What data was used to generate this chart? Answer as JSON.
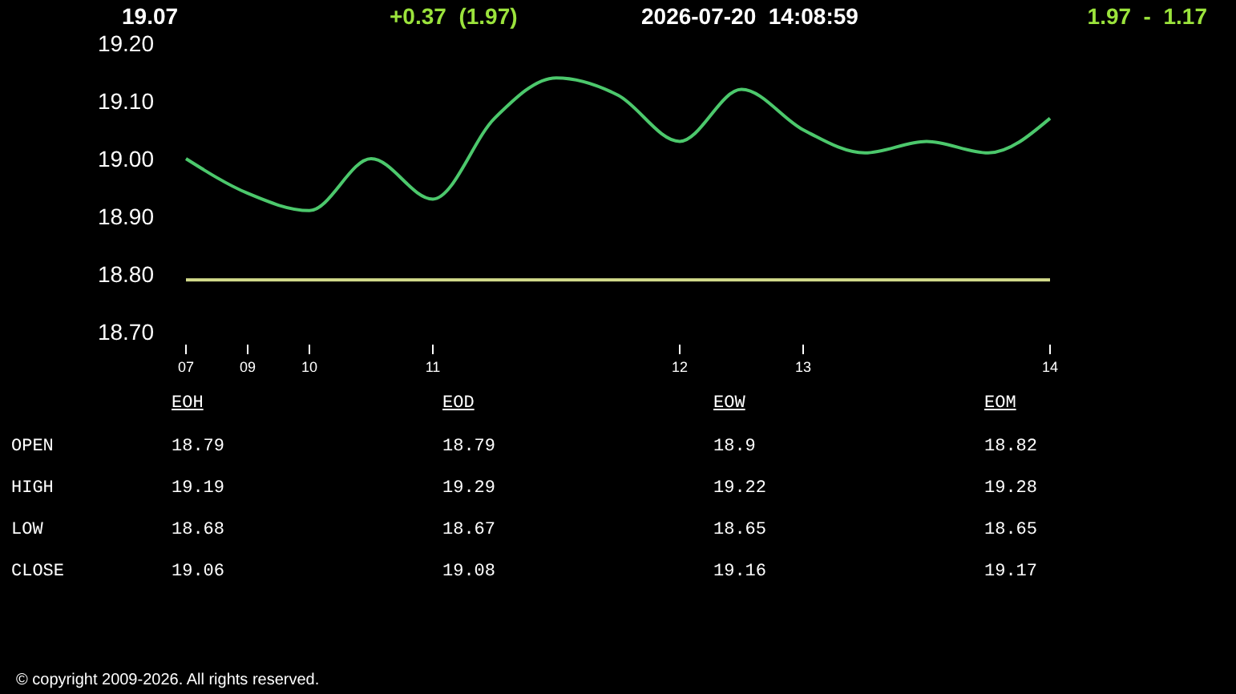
{
  "chart_data": {
    "type": "line",
    "title": "19.07",
    "subtitle": "+0.37  (1.97)",
    "categories": [
      "07",
      "09",
      "10",
      null,
      "11",
      null,
      null,
      null,
      "12",
      null,
      "13",
      null,
      null,
      null,
      "14"
    ],
    "series": [
      {
        "color": "#4cc86c",
        "values": [
          19.0,
          18.94,
          18.91,
          19.0,
          18.93,
          19.07,
          19.14,
          19.11,
          19.03,
          19.12,
          19.05,
          19.01,
          19.03,
          19.01,
          19.07
        ]
      },
      {
        "color": "#d4dc8c",
        "values": [
          18.79,
          18.79,
          18.79,
          18.79,
          18.79,
          18.79,
          18.79,
          18.79,
          18.79,
          18.79,
          18.79,
          18.79,
          18.79,
          18.79,
          18.79
        ]
      }
    ],
    "ylim": [
      18.7,
      19.2
    ],
    "yticks": [
      {
        "value": 18.7,
        "label": "18.70"
      },
      {
        "value": 18.8,
        "label": "18.80"
      },
      {
        "value": 18.9,
        "label": "18.90"
      },
      {
        "value": 19.0,
        "label": "19.00"
      },
      {
        "value": 19.1,
        "label": "19.10"
      },
      {
        "value": 19.2,
        "label": "19.20"
      }
    ],
    "marker": "none",
    "annotations": [
      "2026-07-20  14:08:59",
      "1.97  -  1.17",
      "EOH",
      "EOD",
      "EOW",
      "EOM",
      "OPEN",
      "18.79",
      "18.79",
      "18.9",
      "18.82",
      "HIGH",
      "19.19",
      "19.29",
      "19.22",
      "19.28",
      "LOW",
      "18.68",
      "18.67",
      "18.65",
      "18.65",
      "CLOSE",
      "19.06",
      "19.08",
      "19.16",
      "19.17",
      "© copyright 2009-2026. All rights reserved."
    ]
  }
}
